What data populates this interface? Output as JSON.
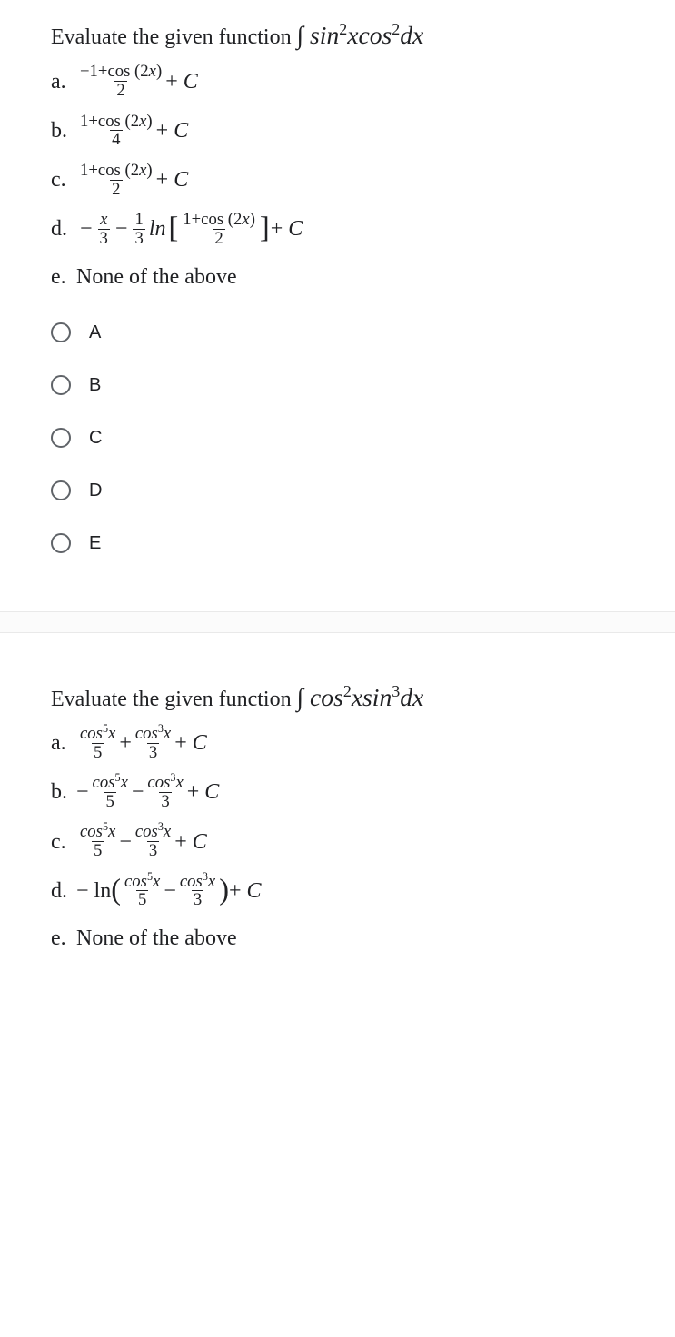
{
  "q1": {
    "prompt_prefix": "Evaluate the given function ",
    "integral_html": "∫ <span class='italic'>sin</span><sup>2</sup><span class='italic'>x</span><span class='italic'>cos</span><sup>2</sup><span class='italic'>dx</span>",
    "answers": {
      "a_label": "a.",
      "a_num": "−1+cos (2<span class='italic'>x</span>)",
      "a_den": "2",
      "a_tail": " + <span class='italic'>C</span>",
      "b_label": "b.",
      "b_num": "1+cos (2<span class='italic'>x</span>)",
      "b_den": "4",
      "b_tail": " + <span class='italic'>C</span>",
      "c_label": "c.",
      "c_num": "1+cos (2<span class='italic'>x</span>)",
      "c_den": "2",
      "c_tail": " + <span class='italic'>C</span>",
      "d_label": "d.",
      "d_f1_num": "<span class='italic'>x</span>",
      "d_f1_den": "3",
      "d_f2_num": "1",
      "d_f2_den": "3",
      "d_ln": "<span class='italic'>ln</span>",
      "d_inner_num": "1+cos (2<span class='italic'>x</span>)",
      "d_inner_den": "2",
      "d_tail": " + <span class='italic'>C</span>",
      "e_label": "e.",
      "e_text": "None of the above"
    },
    "options": {
      "A": "A",
      "B": "B",
      "C": "C",
      "D": "D",
      "E": "E"
    }
  },
  "q2": {
    "prompt_prefix": "Evaluate the given function ",
    "integral_html": "∫ <span class='italic'>cos</span><sup>2</sup><span class='italic'>xsin</span><sup>3</sup><span class='italic'>dx</span>",
    "answers": {
      "a_label": "a.",
      "a_f1_num": "<span class='italic'>cos</span><sup>5</sup><span class='italic'>x</span>",
      "a_f1_den": "5",
      "a_op": " + ",
      "a_f2_num": "<span class='italic'>cos</span><sup>3</sup><span class='italic'>x</span>",
      "a_f2_den": "3",
      "a_tail": " + <span class='italic'>C</span>",
      "b_label": "b.",
      "b_pre": "− ",
      "b_f1_num": "<span class='italic'>cos</span><sup>5</sup><span class='italic'>x</span>",
      "b_f1_den": "5",
      "b_op": " − ",
      "b_f2_num": "<span class='italic'>cos</span><sup>3</sup><span class='italic'>x</span>",
      "b_f2_den": "3",
      "b_tail": " + <span class='italic'>C</span>",
      "c_label": "c.",
      "c_f1_num": "<span class='italic'>cos</span><sup>5</sup><span class='italic'>x</span>",
      "c_f1_den": "5",
      "c_op": " − ",
      "c_f2_num": "<span class='italic'>cos</span><sup>3</sup><span class='italic'>x</span>",
      "c_f2_den": "3",
      "c_tail": " + <span class='italic'>C</span>",
      "d_label": "d.",
      "d_pre": "− ln ",
      "d_f1_num": "<span class='italic'>cos</span><sup>5</sup><span class='italic'>x</span>",
      "d_f1_den": "5",
      "d_op": " − ",
      "d_f2_num": "<span class='italic'>cos</span><sup>3</sup><span class='italic'>x</span>",
      "d_f2_den": "3",
      "d_tail": " + <span class='italic'>C</span>",
      "e_label": "e.",
      "e_text": "None of the above"
    }
  }
}
